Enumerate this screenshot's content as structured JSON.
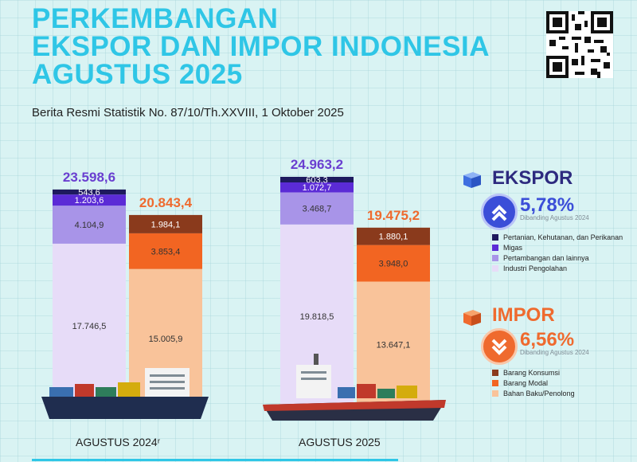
{
  "title_lines": [
    "PERKEMBANGAN",
    "EKSPOR DAN IMPOR INDONESIA",
    "AGUSTUS 2025"
  ],
  "subtitle": "Berita Resmi Statistik No. 87/10/Th.XXVIII, 1 Oktober 2025",
  "ekspor": {
    "label": "EKSPOR",
    "pct": "5,78%",
    "compare": "Dibanding Agustus 2024",
    "legend": [
      "Pertanian, Kehutanan, dan Perikanan",
      "Migas",
      "Pertambangan dan lainnya",
      "Industri Pengolahan"
    ]
  },
  "impor": {
    "label": "IMPOR",
    "pct": "6,56%",
    "compare": "Dibanding Agustus 2024",
    "legend": [
      "Barang Konsumsi",
      "Barang Modal",
      "Bahan Baku/Penolong"
    ]
  },
  "colors": {
    "title": "#2fc6e6",
    "pertanian": "#1e1a5e",
    "migas": "#5b2bd6",
    "pertambangan": "#a894e8",
    "industri": "#e7dcf8",
    "konsumsi": "#8a3a1c",
    "modal": "#f26522",
    "bahan": "#f9c39a",
    "ekspor_total": "#6a3fd0",
    "impor_total": "#ef6a2e"
  },
  "chart_data": {
    "type": "bar",
    "stacked": true,
    "categories": [
      "AGUSTUS 2024ʳ",
      "AGUSTUS 2025"
    ],
    "ekspor": {
      "totals": [
        "23.598,6",
        "24.963,2"
      ],
      "total_values": [
        23598.6,
        24963.2
      ],
      "series": [
        {
          "name": "Industri Pengolahan",
          "values": [
            17746.5,
            19818.5
          ],
          "labels": [
            "17.746,5",
            "19.818,5"
          ]
        },
        {
          "name": "Pertambangan dan lainnya",
          "values": [
            4104.9,
            3468.7
          ],
          "labels": [
            "4.104,9",
            "3.468,7"
          ]
        },
        {
          "name": "Migas",
          "values": [
            1203.6,
            1072.7
          ],
          "labels": [
            "1.203,6",
            "1.072,7"
          ]
        },
        {
          "name": "Pertanian, Kehutanan, dan Perikanan",
          "values": [
            543.6,
            603.3
          ],
          "labels": [
            "543,6",
            "603,3"
          ]
        }
      ]
    },
    "impor": {
      "totals": [
        "20.843,4",
        "19.475,2"
      ],
      "total_values": [
        20843.4,
        19475.2
      ],
      "series": [
        {
          "name": "Bahan Baku/Penolong",
          "values": [
            15005.9,
            13647.1
          ],
          "labels": [
            "15.005,9",
            "13.647,1"
          ]
        },
        {
          "name": "Barang Modal",
          "values": [
            3853.4,
            3948.0
          ],
          "labels": [
            "3.853,4",
            "3.948,0"
          ]
        },
        {
          "name": "Barang Konsumsi",
          "values": [
            1984.1,
            1880.1
          ],
          "labels": [
            "1.984,1",
            "1.880,1"
          ]
        }
      ]
    }
  }
}
